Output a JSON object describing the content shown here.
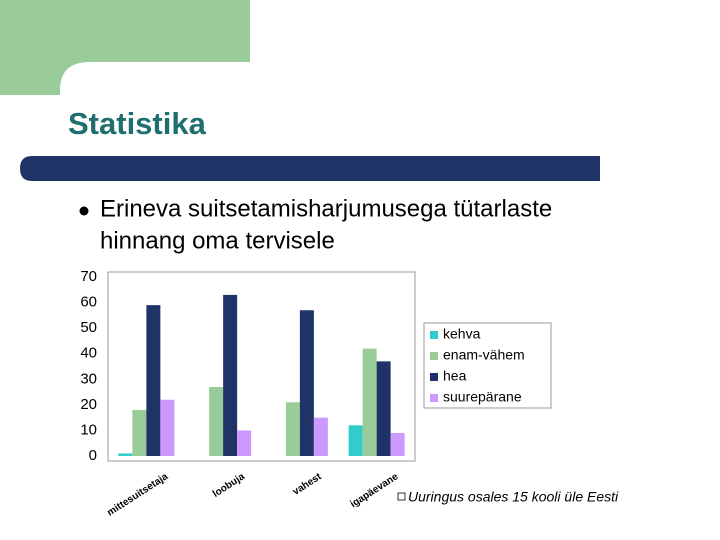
{
  "slide": {
    "title": "Statistika",
    "bullet": [
      "Erineva suitsetamisharjumusega tütarlaste",
      "hinnang oma tervisele"
    ],
    "note": "Uuringus osales 15 kooli üle Eesti"
  },
  "chart_data": {
    "type": "bar",
    "categories": [
      "mittesuitsetaja",
      "loobuja",
      "vahest",
      "igapäevane"
    ],
    "series": [
      {
        "name": "kehva",
        "color": "#33cccc",
        "values": [
          1,
          0,
          0,
          12
        ]
      },
      {
        "name": "enam-vähem",
        "color": "#99cc99",
        "values": [
          18,
          27,
          21,
          42
        ]
      },
      {
        "name": "hea",
        "color": "#1f3366",
        "values": [
          59,
          63,
          57,
          37
        ]
      },
      {
        "name": "suurepärane",
        "color": "#cc99ff",
        "values": [
          22,
          10,
          15,
          9
        ]
      }
    ],
    "ylim": [
      0,
      70
    ],
    "yticks": [
      0,
      10,
      20,
      30,
      40,
      50,
      60,
      70
    ],
    "grid": false,
    "legend": "right"
  }
}
